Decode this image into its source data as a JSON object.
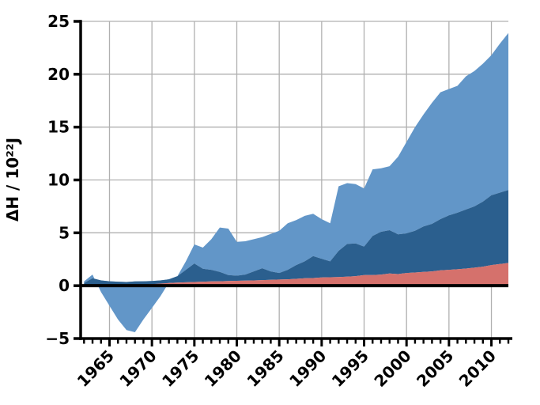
{
  "figure": {
    "background": "#ffffff",
    "text_color": "#000000",
    "grid_color": "#b0b0b0",
    "axis_color": "#000000",
    "zero_line_color": "#000000"
  },
  "chart_data": {
    "type": "area",
    "stacked": true,
    "title": "",
    "xlabel": "",
    "ylabel": "ΔH / 10²²J",
    "legend": "none",
    "grid": "on",
    "xlim": [
      1961.6,
      2012
    ],
    "ylim": [
      -5,
      25
    ],
    "yticks": [
      -5,
      0,
      5,
      10,
      15,
      20,
      25
    ],
    "ytick_labels": [
      "−5",
      "0",
      "5",
      "10",
      "15",
      "20",
      "25"
    ],
    "xticks": [
      1965,
      1970,
      1975,
      1980,
      1985,
      1990,
      1995,
      2000,
      2005,
      2010
    ],
    "xtick_labels": [
      "1965",
      "1970",
      "1975",
      "1980",
      "1985",
      "1990",
      "1995",
      "2000",
      "2005",
      "2010"
    ],
    "minor_xtick_step": 1,
    "zero_line": true,
    "x": [
      1962,
      1963,
      1964,
      1965,
      1966,
      1967,
      1968,
      1969,
      1970,
      1971,
      1972,
      1973,
      1974,
      1975,
      1976,
      1977,
      1978,
      1979,
      1980,
      1981,
      1982,
      1983,
      1984,
      1985,
      1986,
      1987,
      1988,
      1989,
      1990,
      1991,
      1992,
      1993,
      1994,
      1995,
      1996,
      1997,
      1998,
      1999,
      2000,
      2001,
      2002,
      2003,
      2004,
      2005,
      2006,
      2007,
      2008,
      2009,
      2010,
      2011,
      2012
    ],
    "series": [
      {
        "name": "lower-red-band",
        "color": "#d5716c",
        "values": [
          0,
          0,
          0,
          0,
          0.02,
          0.04,
          0.07,
          0.1,
          0.15,
          0.2,
          0.25,
          0.3,
          0.32,
          0.35,
          0.38,
          0.4,
          0.42,
          0.44,
          0.46,
          0.48,
          0.5,
          0.53,
          0.55,
          0.58,
          0.6,
          0.65,
          0.7,
          0.72,
          0.78,
          0.8,
          0.82,
          0.85,
          0.9,
          1.0,
          1.0,
          1.05,
          1.15,
          1.1,
          1.2,
          1.25,
          1.3,
          1.35,
          1.45,
          1.5,
          1.55,
          1.62,
          1.7,
          1.8,
          1.95,
          2.05,
          2.15
        ]
      },
      {
        "name": "mid-dark-blue-band",
        "color": "#2b5f8e",
        "values": [
          0.25,
          0.7,
          0.5,
          0.42,
          0.36,
          0.31,
          0.33,
          0.32,
          0.3,
          0.3,
          0.35,
          0.6,
          1.18,
          1.75,
          1.22,
          1.1,
          0.88,
          0.56,
          0.49,
          0.57,
          0.85,
          1.12,
          0.8,
          0.62,
          0.9,
          1.3,
          1.6,
          2.08,
          1.77,
          1.5,
          2.48,
          3.1,
          3.1,
          2.7,
          3.7,
          4.05,
          4.1,
          3.75,
          3.75,
          3.95,
          4.3,
          4.5,
          4.85,
          5.15,
          5.35,
          5.58,
          5.8,
          6.15,
          6.6,
          6.75,
          6.9
        ]
      },
      {
        "name": "upper-light-blue-band",
        "color": "#6296c8",
        "values": [
          0.15,
          0.35,
          -1.1,
          -2.32,
          -3.58,
          -4.55,
          -4.8,
          -3.62,
          -2.55,
          -1.5,
          -0.3,
          0,
          0.8,
          1.8,
          2.0,
          2.9,
          4.2,
          4.4,
          3.2,
          3.15,
          3.05,
          2.95,
          3.55,
          4.0,
          4.4,
          4.25,
          4.3,
          4.0,
          3.75,
          3.6,
          6.1,
          5.75,
          5.6,
          5.5,
          6.3,
          6.0,
          6.05,
          7.35,
          8.65,
          9.8,
          10.6,
          11.45,
          12.0,
          11.95,
          12.0,
          12.6,
          12.8,
          13.05,
          13.25,
          14.1,
          14.85
        ]
      }
    ]
  }
}
